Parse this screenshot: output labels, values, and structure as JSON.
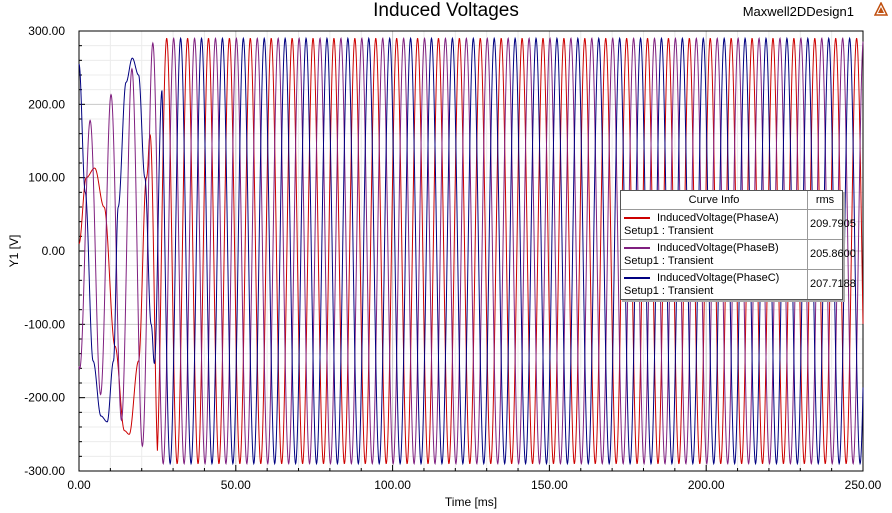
{
  "header": {
    "design_name": "Maxwell2DDesign1"
  },
  "chart_data": {
    "type": "line",
    "title": "Induced Voltages",
    "xlabel": "Time [ms]",
    "ylabel": "Y1 [V]",
    "xlim": [
      0,
      250
    ],
    "ylim": [
      -300,
      300
    ],
    "x_ticks": [
      "0.00",
      "50.00",
      "100.00",
      "150.00",
      "200.00",
      "250.00"
    ],
    "y_ticks": [
      "300.00",
      "200.00",
      "100.00",
      "0.00",
      "-100.00",
      "-200.00",
      "-300.00"
    ],
    "grid": true,
    "legend_placement": "right",
    "frequency_hz": 150,
    "steady_amplitude_v": 290,
    "series": [
      {
        "name": "InducedVoltage(PhaseA)",
        "label2": "Setup1 : Transient",
        "rms": "209.7905",
        "color": "#cc0000",
        "phase_deg": 0,
        "startup_points": [
          [
            0,
            10
          ],
          [
            2.3,
            100
          ],
          [
            5,
            113
          ],
          [
            8,
            60
          ],
          [
            11.5,
            -130
          ],
          [
            14.5,
            -245
          ],
          [
            16,
            -250
          ],
          [
            19,
            -150
          ],
          [
            21.5,
            100
          ],
          [
            24,
            283
          ],
          [
            25,
            285
          ]
        ]
      },
      {
        "name": "InducedVoltage(PhaseB)",
        "label2": "Setup1 : Transient",
        "rms": "205.8600",
        "color": "#7f1f7f",
        "phase_deg": -120
      },
      {
        "name": "InducedVoltage(PhaseC)",
        "label2": "Setup1 : Transient",
        "rms": "207.7188",
        "color": "#000080",
        "phase_deg": 120,
        "startup_points": [
          [
            0,
            255
          ],
          [
            2,
            80
          ],
          [
            4.5,
            -150
          ],
          [
            7,
            -225
          ],
          [
            9,
            -233
          ],
          [
            11,
            -150
          ],
          [
            12.5,
            60
          ],
          [
            15,
            230
          ],
          [
            17,
            263
          ],
          [
            19,
            240
          ],
          [
            21,
            100
          ],
          [
            23,
            -100
          ],
          [
            25,
            -260
          ],
          [
            26.5,
            -282
          ]
        ]
      }
    ],
    "legend": {
      "header_info": "Curve Info",
      "header_rms": "rms"
    }
  }
}
